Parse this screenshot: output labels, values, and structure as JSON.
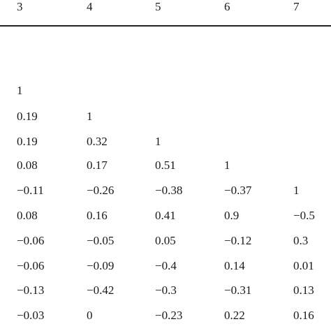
{
  "table": {
    "columns": [
      "3",
      "4",
      "5",
      "6",
      "7"
    ],
    "rows": [
      [
        "1",
        "",
        "",
        "",
        ""
      ],
      [
        "0.19",
        "1",
        "",
        "",
        ""
      ],
      [
        "0.19",
        "0.32",
        "1",
        "",
        ""
      ],
      [
        "0.08",
        "0.17",
        "0.51",
        "1",
        ""
      ],
      [
        "−0.11",
        "−0.26",
        "−0.38",
        "−0.37",
        "1"
      ],
      [
        "0.08",
        "0.16",
        "0.41",
        "0.9",
        "−0.5"
      ],
      [
        "−0.06",
        "−0.05",
        "0.05",
        "−0.12",
        "0.3"
      ],
      [
        "−0.06",
        "−0.09",
        "−0.4",
        "0.14",
        "0.01"
      ],
      [
        "−0.13",
        "−0.42",
        "−0.3",
        "−0.31",
        "0.13"
      ],
      [
        "−0.03",
        "0",
        "−0.23",
        "0.22",
        "0.16"
      ]
    ]
  }
}
